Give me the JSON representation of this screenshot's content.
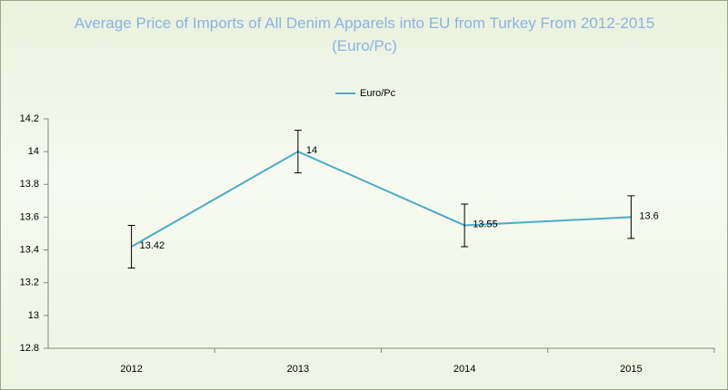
{
  "chart_data": {
    "type": "line",
    "title": "Average Price of Imports of All Denim Apparels into EU from Turkey From 2012-2015 (Euro/Pc)",
    "categories": [
      "2012",
      "2013",
      "2014",
      "2015"
    ],
    "series": [
      {
        "name": "Euro/Pc",
        "color": "#4bacc6",
        "values": [
          13.42,
          14,
          13.55,
          13.6
        ],
        "errors": [
          0.13,
          0.13,
          0.13,
          0.13
        ]
      }
    ],
    "ylim": [
      12.8,
      14.2
    ],
    "yticks": [
      12.8,
      13,
      13.2,
      13.4,
      13.6,
      13.8,
      14,
      14.2
    ],
    "grid": false,
    "legend": "top"
  }
}
